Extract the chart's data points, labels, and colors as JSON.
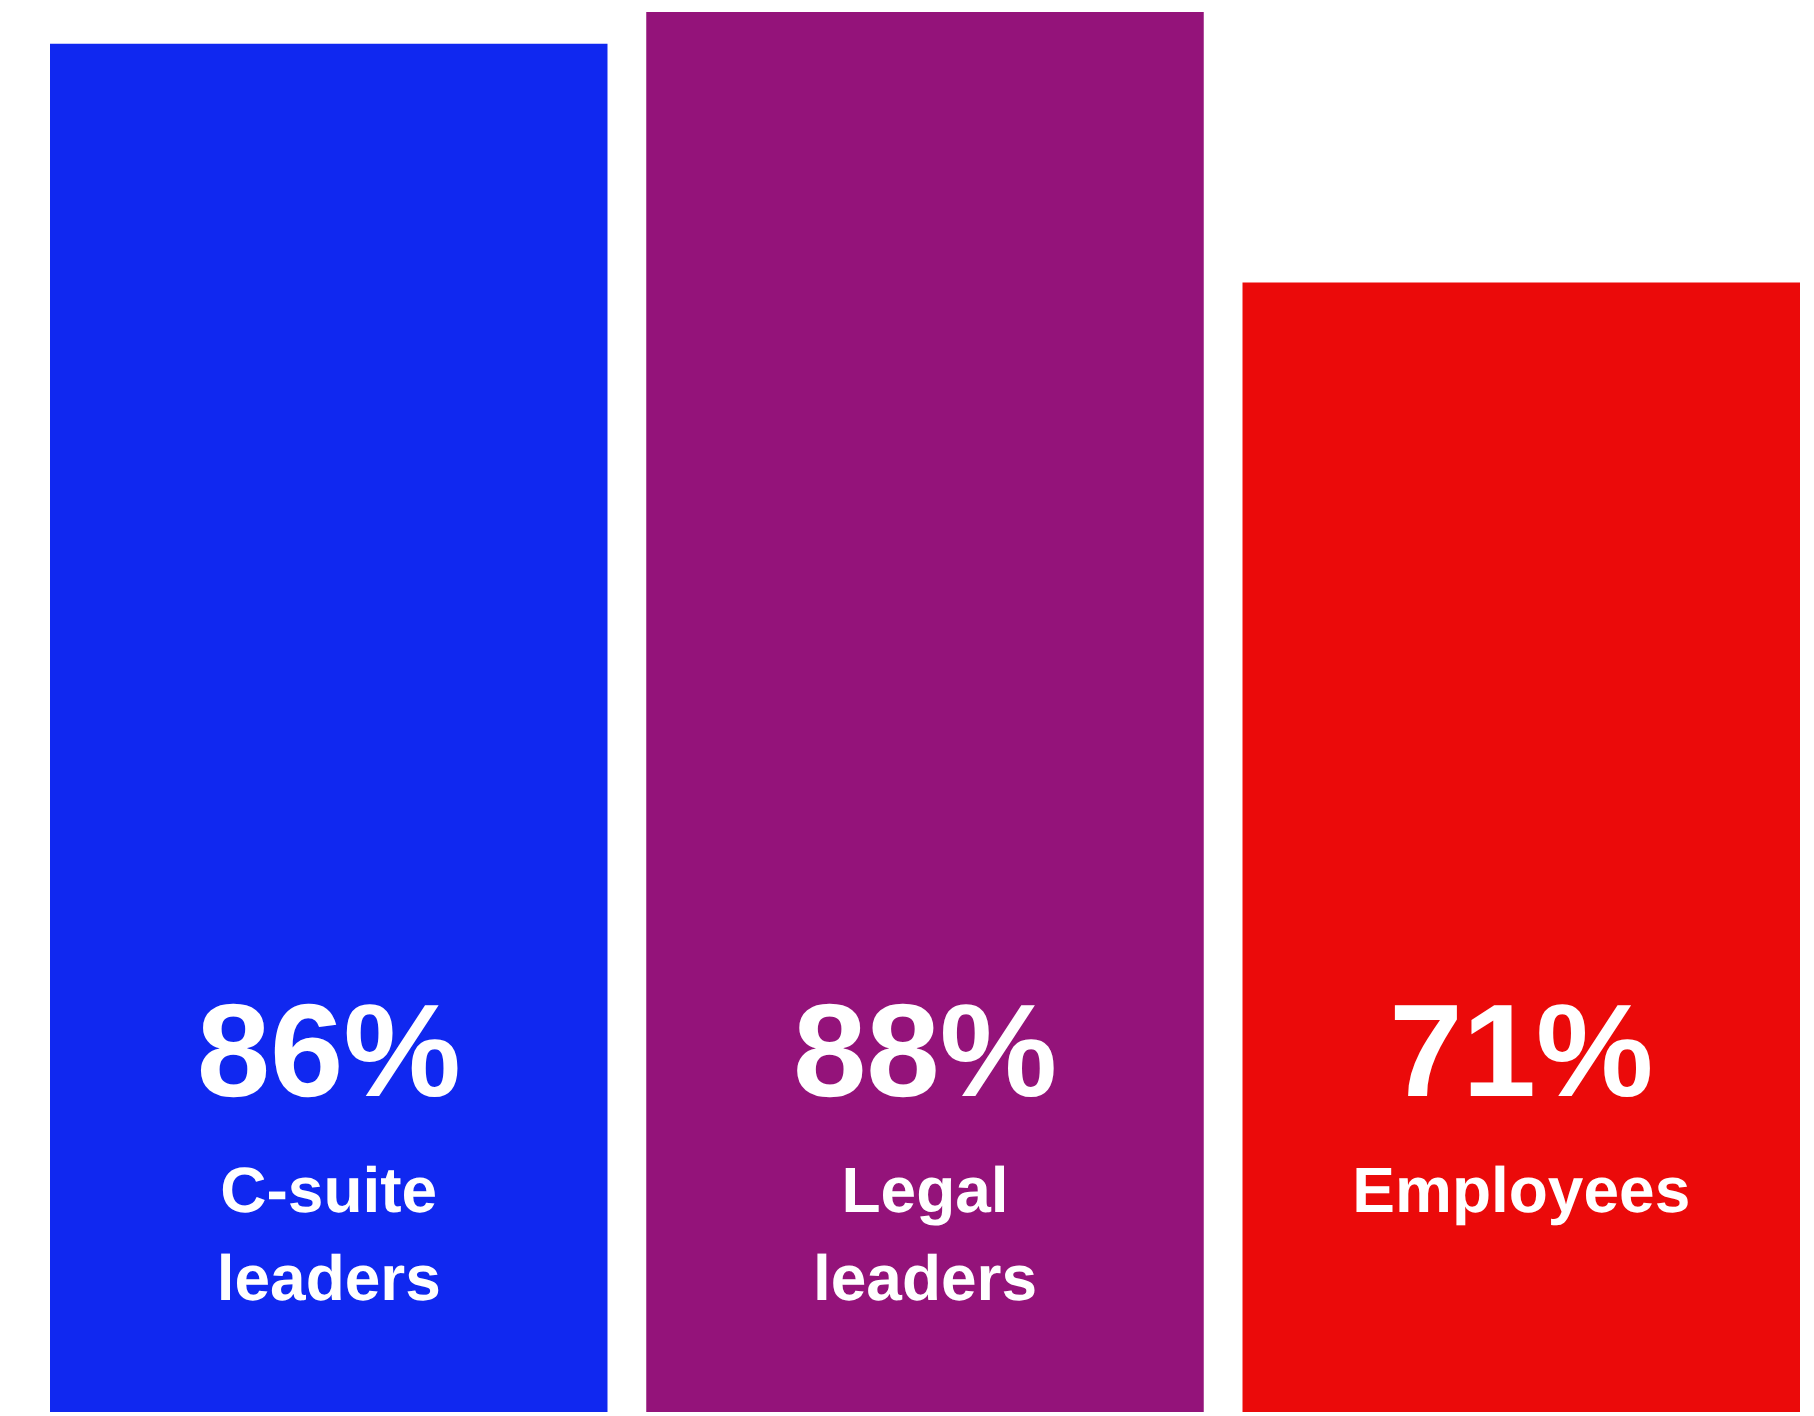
{
  "chart_data": {
    "type": "bar",
    "categories": [
      "C-suite leaders",
      "Legal leaders",
      "Employees"
    ],
    "values": [
      86,
      88,
      71
    ],
    "colors": [
      "#1028f0",
      "#94137a",
      "#eb0a0a"
    ],
    "value_labels": [
      "86%",
      "88%",
      "71%"
    ]
  }
}
